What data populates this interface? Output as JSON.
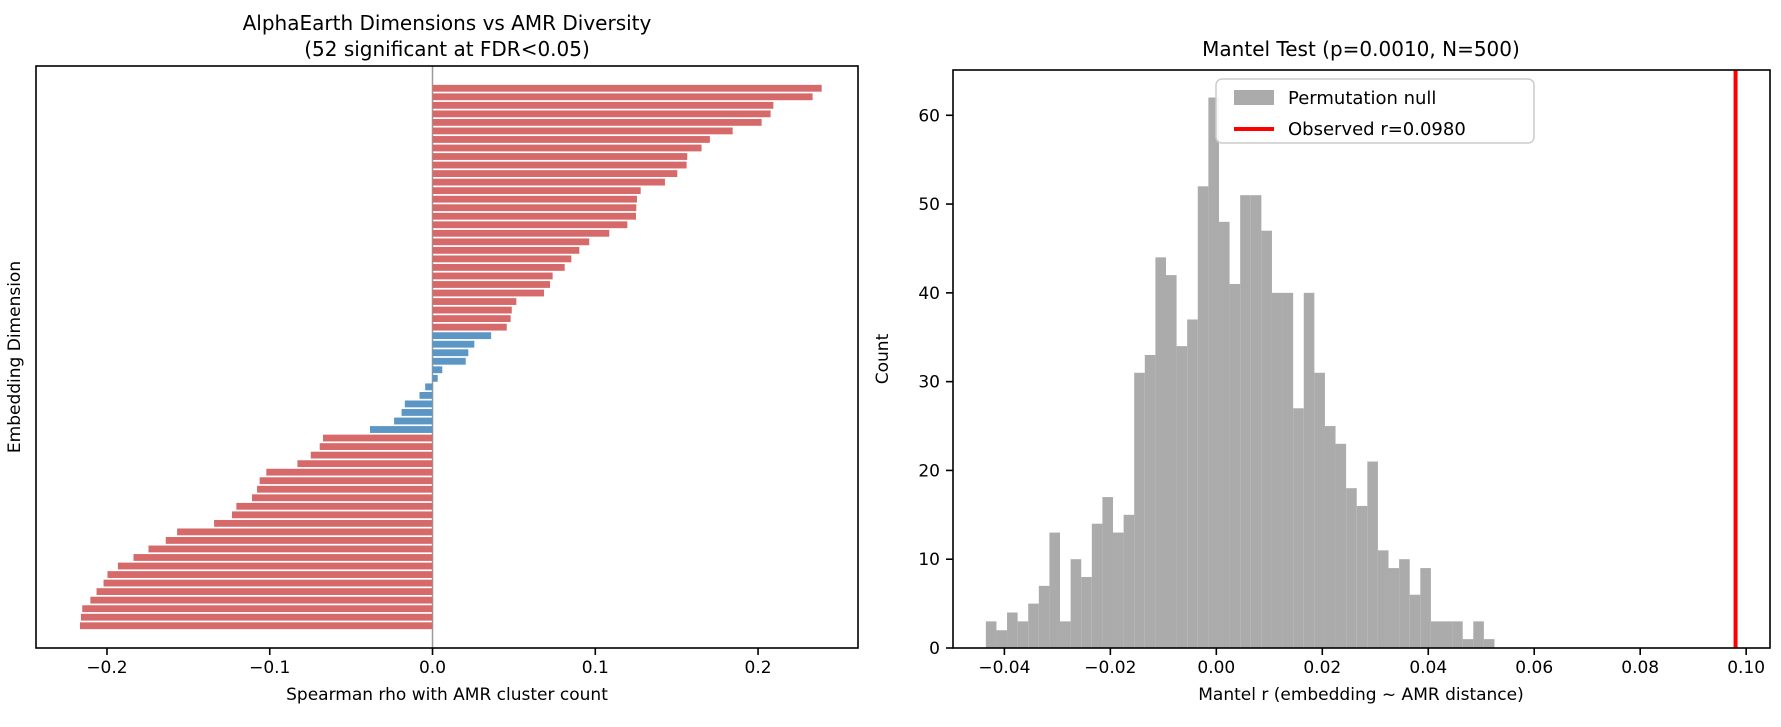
{
  "chart_data": [
    {
      "type": "bar",
      "orientation": "horizontal",
      "title": "AlphaEarth Dimensions vs AMR Diversity",
      "subtitle": "(52 significant at FDR&lt;0.05)",
      "subtitle_plain": "(52 significant at FDR<0.05)",
      "xlabel": "Spearman rho with AMR cluster count",
      "ylabel": "Embedding Dimension",
      "xlim": [
        -0.2436,
        0.2614
      ],
      "x_ticks": [
        -0.2,
        -0.1,
        0.0,
        0.1,
        0.2
      ],
      "x_tick_labels": [
        "−0.2",
        "−0.1",
        "0.0",
        "0.1",
        "0.2"
      ],
      "grid": false,
      "significant_color": "#d66a6a",
      "nonsignificant_color": "#5b96c4",
      "zero_line_color": "#9b9b9b",
      "values": [
        0.2391,
        0.2335,
        0.2094,
        0.2077,
        0.2022,
        0.1844,
        0.1704,
        0.1653,
        0.1565,
        0.1561,
        0.1504,
        0.1428,
        0.1279,
        0.1256,
        0.1252,
        0.125,
        0.1197,
        0.1086,
        0.0963,
        0.0902,
        0.0853,
        0.0812,
        0.0738,
        0.0722,
        0.0685,
        0.0515,
        0.0487,
        0.048,
        0.0456,
        0.036,
        0.0257,
        0.022,
        0.0204,
        0.006,
        0.0032,
        -0.0045,
        -0.008,
        -0.017,
        -0.019,
        -0.0236,
        -0.0384,
        -0.0673,
        -0.0693,
        -0.0748,
        -0.083,
        -0.1021,
        -0.1062,
        -0.1078,
        -0.1109,
        -0.1205,
        -0.1232,
        -0.1342,
        -0.1569,
        -0.1639,
        -0.1745,
        -0.1837,
        -0.1933,
        -0.1997,
        -0.2021,
        -0.2064,
        -0.2102,
        -0.2152,
        -0.216,
        -0.2166
      ],
      "significant": [
        true,
        true,
        true,
        true,
        true,
        true,
        true,
        true,
        true,
        true,
        true,
        true,
        true,
        true,
        true,
        true,
        true,
        true,
        true,
        true,
        true,
        true,
        true,
        true,
        true,
        true,
        true,
        true,
        true,
        false,
        false,
        false,
        false,
        false,
        false,
        false,
        false,
        false,
        false,
        false,
        false,
        true,
        true,
        true,
        true,
        true,
        true,
        true,
        true,
        true,
        true,
        true,
        true,
        true,
        true,
        true,
        true,
        true,
        true,
        true,
        true,
        true,
        true,
        true
      ]
    },
    {
      "type": "histogram",
      "title": "Mantel Test (p=0.0010, N=500)",
      "xlabel": "Mantel r (embedding ~ AMR distance)",
      "ylabel": "Count",
      "xlim": [
        -0.0497,
        0.1045
      ],
      "ylim": [
        0,
        65.1
      ],
      "x_ticks": [
        -0.04,
        -0.02,
        0.0,
        0.02,
        0.04,
        0.06,
        0.08,
        0.1
      ],
      "x_tick_labels": [
        "−0.04",
        "−0.02",
        "0.00",
        "0.02",
        "0.04",
        "0.06",
        "0.08",
        "0.10"
      ],
      "y_ticks": [
        0,
        10,
        20,
        30,
        40,
        50,
        60
      ],
      "y_tick_labels": [
        "0",
        "10",
        "20",
        "30",
        "40",
        "50",
        "60"
      ],
      "bin_start": -0.0435,
      "bin_width": 0.002,
      "counts": [
        3,
        2,
        4,
        3,
        5,
        7,
        13,
        3,
        10,
        8,
        14,
        17,
        13,
        15,
        31,
        33,
        44,
        42,
        34,
        37,
        52,
        62,
        48,
        41,
        51,
        51,
        47,
        40,
        40,
        27,
        40,
        31,
        25,
        23,
        18,
        16,
        21,
        11,
        9,
        10,
        6,
        9,
        3,
        3,
        3,
        1,
        3,
        1
      ],
      "bar_color": "#ababab",
      "observed_r": 0.098,
      "observed_line_color": "#ff0000",
      "legend": [
        {
          "label": "Permutation null",
          "swatch": "patch",
          "color": "#ababab"
        },
        {
          "label": "Observed r=0.0980",
          "swatch": "line",
          "color": "#ff0000"
        }
      ]
    }
  ]
}
